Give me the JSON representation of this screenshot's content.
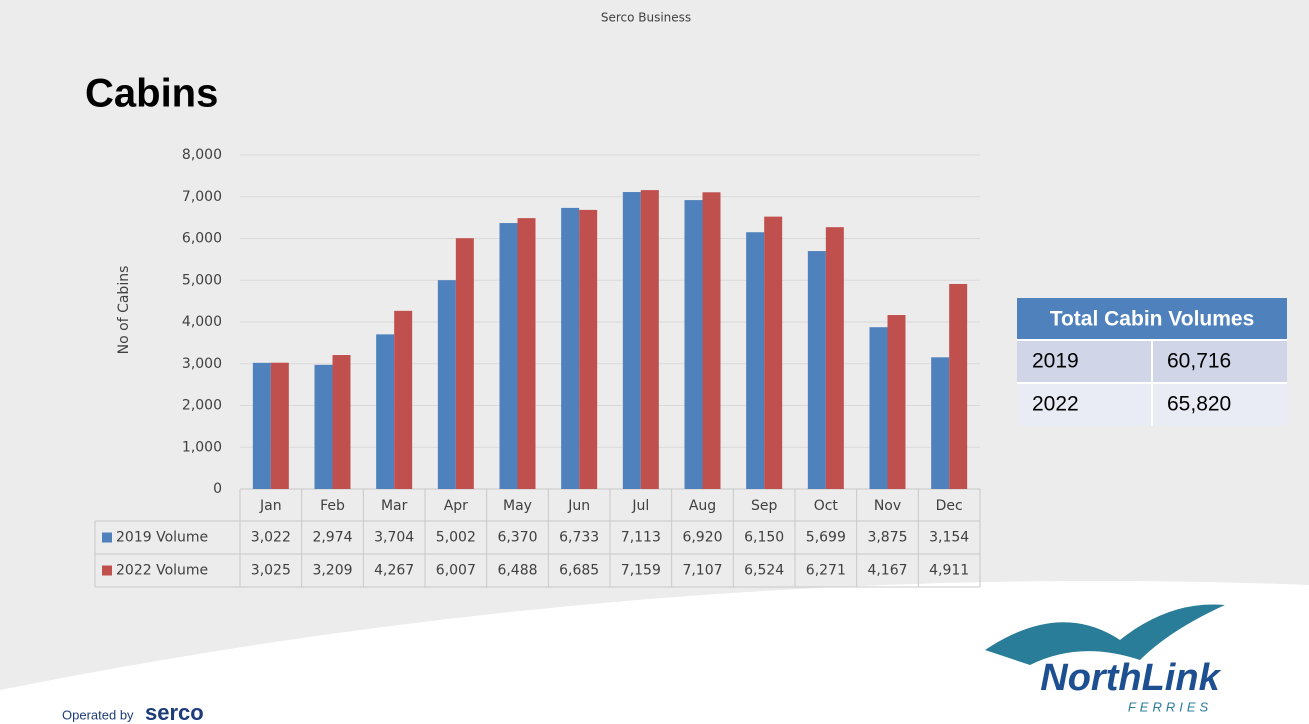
{
  "header": {
    "text": "Serco Business"
  },
  "title": "Cabins",
  "chart_data": {
    "type": "bar",
    "ylabel": "No of Cabins",
    "categories": [
      "Jan",
      "Feb",
      "Mar",
      "Apr",
      "May",
      "Jun",
      "Jul",
      "Aug",
      "Sep",
      "Oct",
      "Nov",
      "Dec"
    ],
    "series": [
      {
        "name": "2019 Volume",
        "color": "#4f81bd",
        "values": [
          3022,
          2974,
          3704,
          5002,
          6370,
          6733,
          7113,
          6920,
          6150,
          5699,
          3875,
          3154
        ],
        "value_labels": [
          "3,022",
          "2,974",
          "3,704",
          "5,002",
          "6,370",
          "6,733",
          "7,113",
          "6,920",
          "6,150",
          "5,699",
          "3,875",
          "3,154"
        ]
      },
      {
        "name": "2022 Volume",
        "color": "#c0504d",
        "values": [
          3025,
          3209,
          4267,
          6007,
          6488,
          6685,
          7159,
          7107,
          6524,
          6271,
          4167,
          4911
        ],
        "value_labels": [
          "3,025",
          "3,209",
          "4,267",
          "6,007",
          "6,488",
          "6,685",
          "7,159",
          "7,107",
          "6,524",
          "6,271",
          "4,167",
          "4,911"
        ]
      }
    ],
    "ylim": [
      0,
      8000
    ],
    "yticks": [
      0,
      {
        "value": 1000,
        "label": "1,000"
      },
      {
        "value": 2000,
        "label": "2,000"
      },
      {
        "value": 3000,
        "label": "3,000"
      },
      {
        "value": 4000,
        "label": "4,000"
      },
      {
        "value": 5000,
        "label": "5,000"
      },
      {
        "value": 6000,
        "label": "6,000"
      },
      {
        "value": 7000,
        "label": "7,000"
      },
      {
        "value": 8000,
        "label": "8,000"
      }
    ],
    "grid": true
  },
  "summary_table": {
    "title": "Total Cabin Volumes",
    "rows": [
      [
        "2019",
        "60,716"
      ],
      [
        "2022",
        "65,820"
      ]
    ]
  },
  "footer": {
    "operated_by": "Operated by",
    "brand": "serco"
  },
  "logo": {
    "name": "NorthLink",
    "sub": "FERRIES"
  }
}
